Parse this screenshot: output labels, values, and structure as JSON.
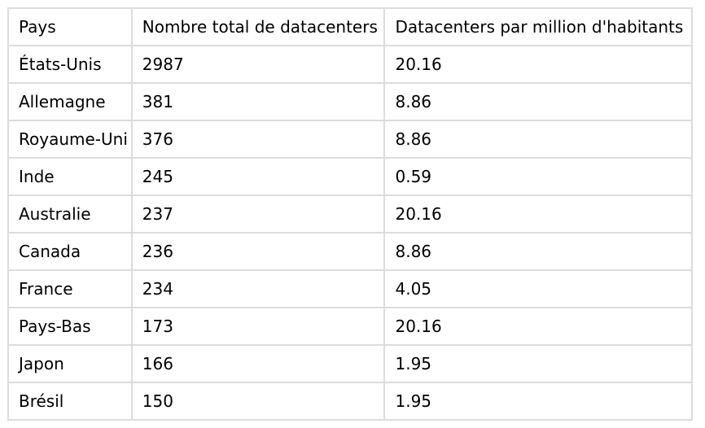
{
  "colors": {
    "background": "#ffffff",
    "border": "#dcdcdc",
    "text": "#000000"
  },
  "table": {
    "headers": {
      "country": "Pays",
      "total": "Nombre total de datacenters",
      "per_million": "Datacenters par million d'habitants"
    },
    "rows": [
      {
        "country": "États-Unis",
        "total": "2987",
        "per_million": "20.16"
      },
      {
        "country": "Allemagne",
        "total": "381",
        "per_million": "8.86"
      },
      {
        "country": "Royaume-Uni",
        "total": "376",
        "per_million": "8.86"
      },
      {
        "country": "Inde",
        "total": "245",
        "per_million": "0.59"
      },
      {
        "country": "Australie",
        "total": "237",
        "per_million": "20.16"
      },
      {
        "country": "Canada",
        "total": "236",
        "per_million": "8.86"
      },
      {
        "country": "France",
        "total": "234",
        "per_million": "4.05"
      },
      {
        "country": "Pays-Bas",
        "total": "173",
        "per_million": "20.16"
      },
      {
        "country": "Japon",
        "total": "166",
        "per_million": "1.95"
      },
      {
        "country": "Brésil",
        "total": "150",
        "per_million": "1.95"
      }
    ]
  },
  "chart_data": {
    "type": "table",
    "title": "",
    "columns": [
      "Pays",
      "Nombre total de datacenters",
      "Datacenters par million d'habitants"
    ],
    "categories": [
      "États-Unis",
      "Allemagne",
      "Royaume-Uni",
      "Inde",
      "Australie",
      "Canada",
      "France",
      "Pays-Bas",
      "Japon",
      "Brésil"
    ],
    "series": [
      {
        "name": "Nombre total de datacenters",
        "values": [
          2987,
          381,
          376,
          245,
          237,
          236,
          234,
          173,
          166,
          150
        ]
      },
      {
        "name": "Datacenters par million d'habitants",
        "values": [
          20.16,
          8.86,
          8.86,
          0.59,
          20.16,
          8.86,
          4.05,
          20.16,
          1.95,
          1.95
        ]
      }
    ]
  }
}
